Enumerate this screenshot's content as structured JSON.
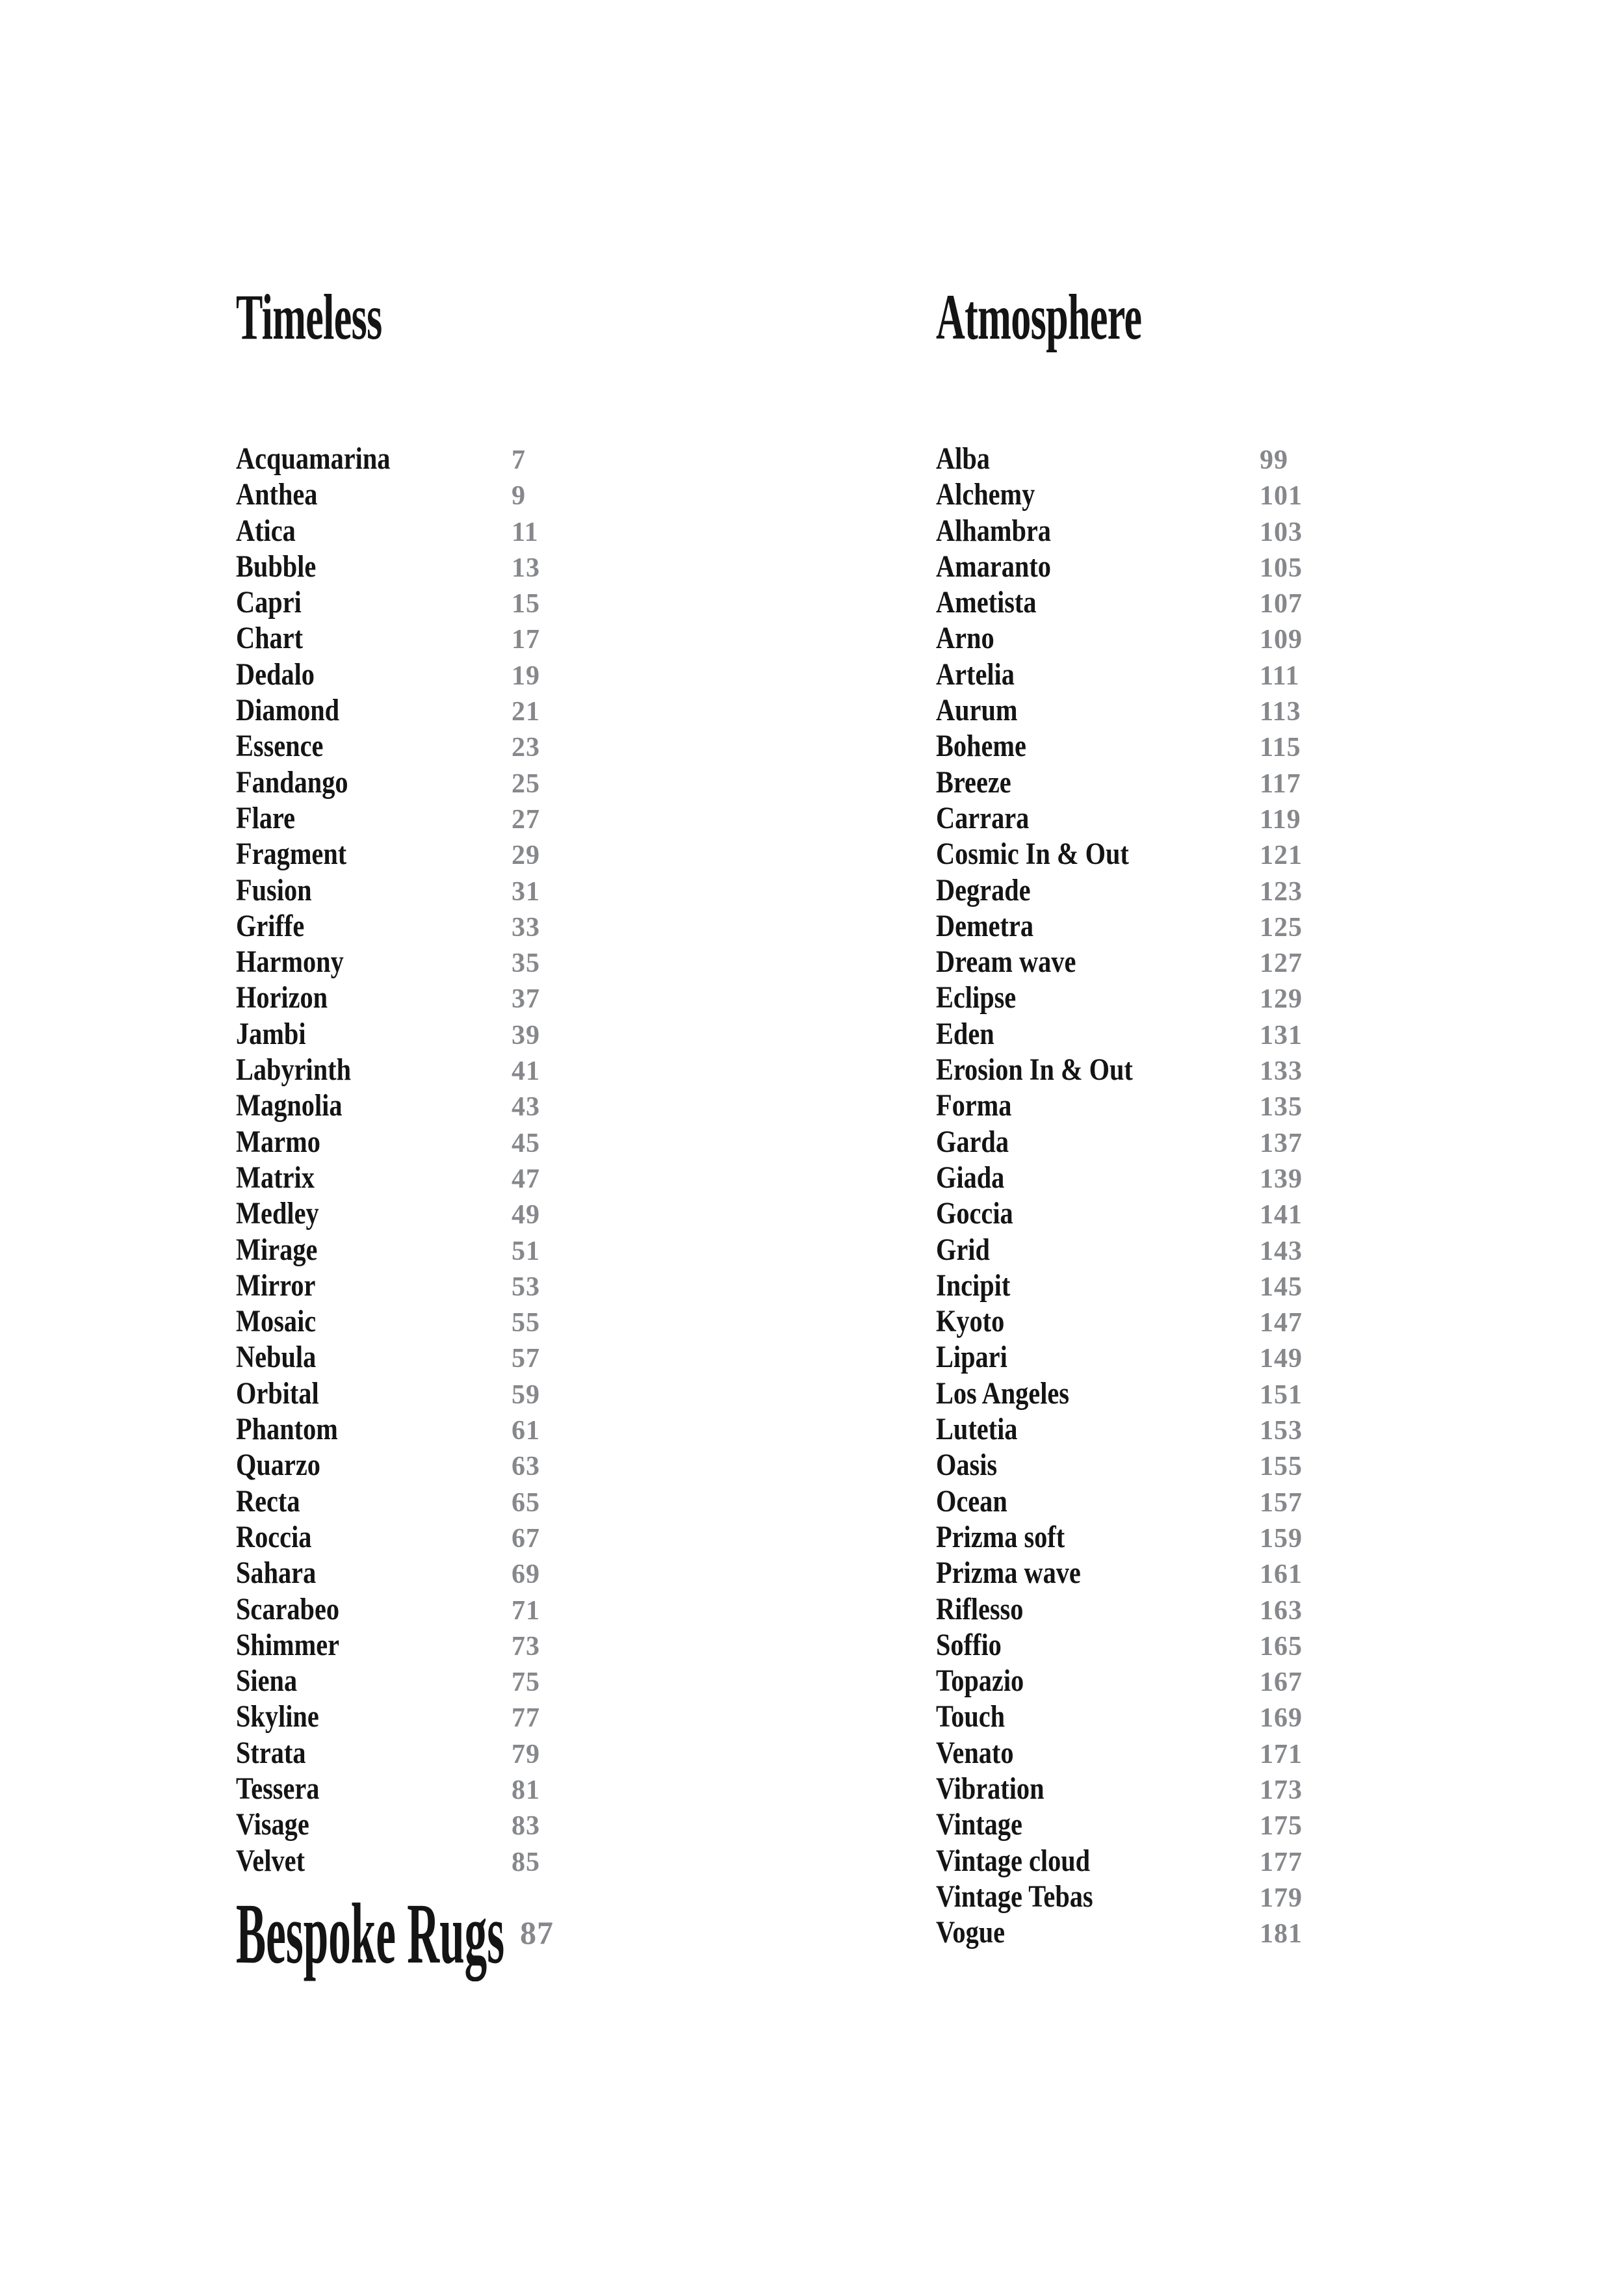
{
  "page": {
    "background": "#ffffff",
    "text_color": "#141414",
    "page_number_color": "#86888c"
  },
  "sections": [
    {
      "title": "Timeless",
      "entries": [
        {
          "name": "Acquamarina",
          "page": "7"
        },
        {
          "name": "Anthea",
          "page": "9"
        },
        {
          "name": "Atica",
          "page": "11"
        },
        {
          "name": "Bubble",
          "page": "13"
        },
        {
          "name": "Capri",
          "page": "15"
        },
        {
          "name": "Chart",
          "page": "17"
        },
        {
          "name": "Dedalo",
          "page": "19"
        },
        {
          "name": "Diamond",
          "page": "21"
        },
        {
          "name": "Essence",
          "page": "23"
        },
        {
          "name": "Fandango",
          "page": "25"
        },
        {
          "name": "Flare",
          "page": "27"
        },
        {
          "name": "Fragment",
          "page": "29"
        },
        {
          "name": "Fusion",
          "page": "31"
        },
        {
          "name": "Griffe",
          "page": "33"
        },
        {
          "name": "Harmony",
          "page": "35"
        },
        {
          "name": "Horizon",
          "page": "37"
        },
        {
          "name": "Jambi",
          "page": "39"
        },
        {
          "name": "Labyrinth",
          "page": "41"
        },
        {
          "name": "Magnolia",
          "page": "43"
        },
        {
          "name": "Marmo",
          "page": "45"
        },
        {
          "name": "Matrix",
          "page": "47"
        },
        {
          "name": "Medley",
          "page": "49"
        },
        {
          "name": "Mirage",
          "page": "51"
        },
        {
          "name": "Mirror",
          "page": "53"
        },
        {
          "name": "Mosaic",
          "page": "55"
        },
        {
          "name": "Nebula",
          "page": "57"
        },
        {
          "name": "Orbital",
          "page": "59"
        },
        {
          "name": "Phantom",
          "page": "61"
        },
        {
          "name": "Quarzo",
          "page": "63"
        },
        {
          "name": "Recta",
          "page": "65"
        },
        {
          "name": "Roccia",
          "page": "67"
        },
        {
          "name": "Sahara",
          "page": "69"
        },
        {
          "name": "Scarabeo",
          "page": "71"
        },
        {
          "name": "Shimmer",
          "page": "73"
        },
        {
          "name": "Siena",
          "page": "75"
        },
        {
          "name": "Skyline",
          "page": "77"
        },
        {
          "name": "Strata",
          "page": "79"
        },
        {
          "name": "Tessera",
          "page": "81"
        },
        {
          "name": "Visage",
          "page": "83"
        },
        {
          "name": "Velvet",
          "page": "85"
        }
      ]
    },
    {
      "title": "Atmosphere",
      "entries": [
        {
          "name": "Alba",
          "page": "99"
        },
        {
          "name": "Alchemy",
          "page": "101"
        },
        {
          "name": "Alhambra",
          "page": "103"
        },
        {
          "name": "Amaranto",
          "page": "105"
        },
        {
          "name": "Ametista",
          "page": "107"
        },
        {
          "name": "Arno",
          "page": "109"
        },
        {
          "name": "Artelia",
          "page": "111"
        },
        {
          "name": "Aurum",
          "page": "113"
        },
        {
          "name": "Boheme",
          "page": "115"
        },
        {
          "name": "Breeze",
          "page": "117"
        },
        {
          "name": "Carrara",
          "page": "119"
        },
        {
          "name": "Cosmic In & Out",
          "page": "121"
        },
        {
          "name": "Degrade",
          "page": "123"
        },
        {
          "name": "Demetra",
          "page": "125"
        },
        {
          "name": "Dream wave",
          "page": "127"
        },
        {
          "name": "Eclipse",
          "page": "129"
        },
        {
          "name": "Eden",
          "page": "131"
        },
        {
          "name": "Erosion In & Out",
          "page": "133"
        },
        {
          "name": "Forma",
          "page": "135"
        },
        {
          "name": "Garda",
          "page": "137"
        },
        {
          "name": "Giada",
          "page": "139"
        },
        {
          "name": "Goccia",
          "page": "141"
        },
        {
          "name": "Grid",
          "page": "143"
        },
        {
          "name": "Incipit",
          "page": "145"
        },
        {
          "name": "Kyoto",
          "page": "147"
        },
        {
          "name": "Lipari",
          "page": "149"
        },
        {
          "name": "Los Angeles",
          "page": "151"
        },
        {
          "name": "Lutetia",
          "page": "153"
        },
        {
          "name": "Oasis",
          "page": "155"
        },
        {
          "name": "Ocean",
          "page": "157"
        },
        {
          "name": "Prizma soft",
          "page": "159"
        },
        {
          "name": "Prizma wave",
          "page": "161"
        },
        {
          "name": "Riflesso",
          "page": "163"
        },
        {
          "name": "Soffio",
          "page": "165"
        },
        {
          "name": "Topazio",
          "page": "167"
        },
        {
          "name": "Touch",
          "page": "169"
        },
        {
          "name": "Venato",
          "page": "171"
        },
        {
          "name": "Vibration",
          "page": "173"
        },
        {
          "name": "Vintage",
          "page": "175"
        },
        {
          "name": "Vintage cloud",
          "page": "177"
        },
        {
          "name": "Vintage Tebas",
          "page": "179"
        },
        {
          "name": "Vogue",
          "page": "181"
        }
      ]
    }
  ],
  "bespoke": {
    "title": "Bespoke Rugs",
    "page": "87"
  }
}
